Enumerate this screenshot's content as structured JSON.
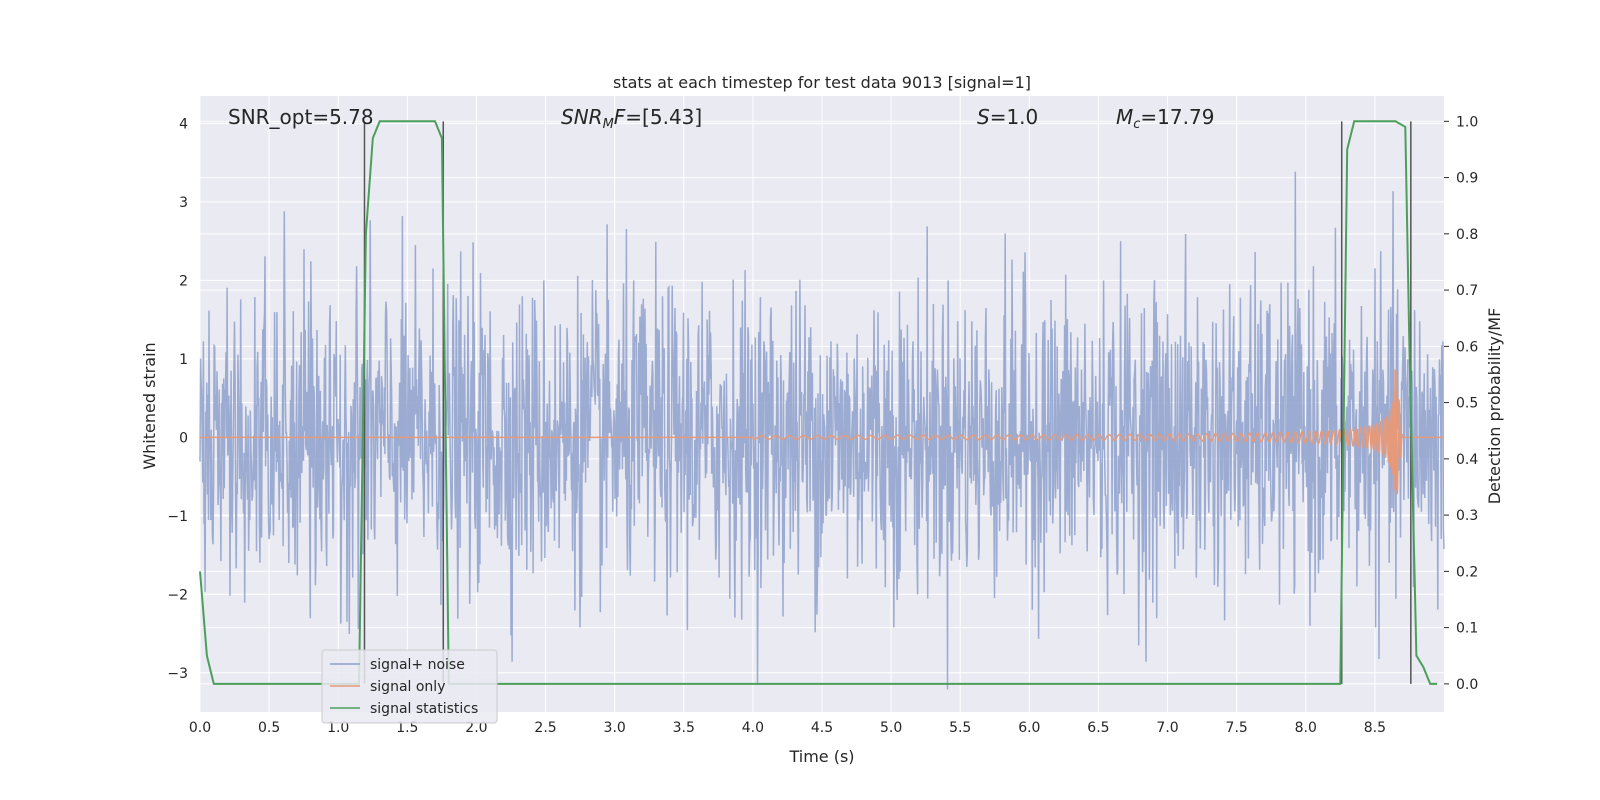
{
  "chart_data": {
    "type": "line",
    "title": "stats at each timestep for test data 9013 [signal=1]",
    "xlabel": "Time (s)",
    "ylabel": "Whitened strain",
    "ylabel_right": "Detection probability/MF",
    "xlim": [
      0.0,
      9.0
    ],
    "ylim": [
      -3.5,
      4.35
    ],
    "ylim_right": [
      -0.05,
      1.045
    ],
    "x_ticks": [
      "0.0",
      "0.5",
      "1.0",
      "1.5",
      "2.0",
      "2.5",
      "3.0",
      "3.5",
      "4.0",
      "4.5",
      "5.0",
      "5.5",
      "6.0",
      "6.5",
      "7.0",
      "7.5",
      "8.0",
      "8.5"
    ],
    "y_ticks": [
      "−3",
      "−2",
      "−1",
      "0",
      "1",
      "2",
      "3",
      "4"
    ],
    "y_ticks_right": [
      "0.0",
      "0.1",
      "0.2",
      "0.3",
      "0.4",
      "0.5",
      "0.6",
      "0.7",
      "0.8",
      "0.9",
      "1.0"
    ],
    "grid": true,
    "legend_position": "lower-left",
    "annotations": {
      "snr_opt": "SNR_opt=5.78",
      "snr_mf": "SNR_MF=[5.43]",
      "s": "S=1.0",
      "mc": "M_c=17.79"
    },
    "series": [
      {
        "name": "signal+ noise",
        "color": "#8da0cb",
        "description": "whitened noise, amplitude mostly within ±2, peaks to ±4",
        "approx_range": [
          -3.3,
          4.0
        ]
      },
      {
        "name": "signal only",
        "color": "#e59a7b",
        "description": "chirp growing from ~4.2s, peak near 8.65s",
        "peak_time": 8.65,
        "peak_amplitude": 1.0
      },
      {
        "name": "signal statistics",
        "color": "#4c9f5a",
        "axis": "right",
        "x": [
          0.0,
          0.05,
          0.1,
          0.15,
          1.15,
          1.2,
          1.25,
          1.3,
          1.7,
          1.75,
          1.8,
          8.25,
          8.3,
          8.35,
          8.65,
          8.72,
          8.75,
          8.8,
          8.85,
          8.9,
          8.95
        ],
        "y": [
          0.2,
          0.05,
          0.0,
          0.0,
          0.0,
          0.8,
          0.97,
          1.0,
          1.0,
          0.97,
          0.0,
          0.0,
          0.95,
          1.0,
          1.0,
          0.99,
          0.6,
          0.05,
          0.03,
          0.0,
          0.0
        ]
      }
    ],
    "vertical_markers": [
      1.19,
      1.76,
      8.26,
      8.76
    ]
  },
  "legend": [
    {
      "label": "signal+ noise",
      "color": "#8da0cb"
    },
    {
      "label": "signal only",
      "color": "#e59a7b"
    },
    {
      "label": "signal statistics",
      "color": "#4c9f5a"
    }
  ],
  "colors": {
    "plot_bg": "#eaeaf2",
    "grid": "#ffffff",
    "text": "#262626"
  }
}
